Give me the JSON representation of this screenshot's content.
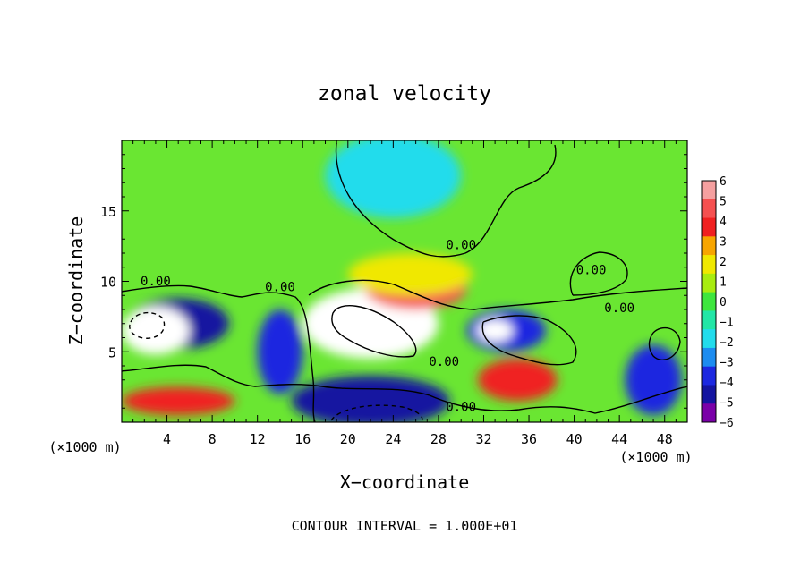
{
  "chart_data": {
    "type": "heatmap",
    "title": "zonal velocity",
    "xlabel": "X−coordinate",
    "ylabel": "Z−coordinate",
    "x_unit_left": "(×1000 m)",
    "x_unit_right": "(×1000 m)",
    "xlim": [
      0,
      50
    ],
    "ylim": [
      0,
      20
    ],
    "x_ticks": [
      {
        "value": 4,
        "label": "4"
      },
      {
        "value": 8,
        "label": "8"
      },
      {
        "value": 12,
        "label": "12"
      },
      {
        "value": 16,
        "label": "16"
      },
      {
        "value": 20,
        "label": "20"
      },
      {
        "value": 24,
        "label": "24"
      },
      {
        "value": 28,
        "label": "28"
      },
      {
        "value": 32,
        "label": "32"
      },
      {
        "value": 36,
        "label": "36"
      },
      {
        "value": 40,
        "label": "40"
      },
      {
        "value": 44,
        "label": "44"
      },
      {
        "value": 48,
        "label": "48"
      }
    ],
    "y_ticks": [
      {
        "value": 5,
        "label": "5"
      },
      {
        "value": 10,
        "label": "10"
      },
      {
        "value": 15,
        "label": "15"
      }
    ],
    "colorbar": {
      "levels": [
        {
          "value": 6,
          "label": "6",
          "color": "#f5a0a0"
        },
        {
          "value": 5,
          "label": "5",
          "color": "#f55050"
        },
        {
          "value": 4,
          "label": "4",
          "color": "#f02020"
        },
        {
          "value": 3,
          "label": "3",
          "color": "#f7a500"
        },
        {
          "value": 2,
          "label": "2",
          "color": "#f0e800"
        },
        {
          "value": 1,
          "label": "1",
          "color": "#a8ec10"
        },
        {
          "value": 0,
          "label": "0",
          "color": "#3ee63e"
        },
        {
          "value": -1,
          "label": "−1",
          "color": "#22e6a6"
        },
        {
          "value": -2,
          "label": "−2",
          "color": "#22dcec"
        },
        {
          "value": -3,
          "label": "−3",
          "color": "#1c8cf0"
        },
        {
          "value": -4,
          "label": "−4",
          "color": "#1c28e0"
        },
        {
          "value": -5,
          "label": "−5",
          "color": "#1414a0"
        },
        {
          "value": -6,
          "label": "−6",
          "color": "#7a00a8"
        }
      ]
    },
    "field_features": [
      {
        "x": 22,
        "z": 7.0,
        "rx": 6.0,
        "rz": 2.5,
        "value": 7
      },
      {
        "x": 26,
        "z": 9.5,
        "rx": 4.5,
        "rz": 1.5,
        "value": 5
      },
      {
        "x": 25.5,
        "z": 10.5,
        "rx": 5.5,
        "rz": 1.5,
        "value": 2
      },
      {
        "x": 5,
        "z": 7.0,
        "rx": 4.5,
        "rz": 1.8,
        "value": -5
      },
      {
        "x": 3,
        "z": 6.5,
        "rx": 3.0,
        "rz": 1.7,
        "value": -7
      },
      {
        "x": 14,
        "z": 5.0,
        "rx": 2.0,
        "rz": 3.0,
        "value": -4
      },
      {
        "x": 22,
        "z": 1.5,
        "rx": 7.0,
        "rz": 1.8,
        "value": -5
      },
      {
        "x": 34,
        "z": 6.5,
        "rx": 3.5,
        "rz": 1.5,
        "value": -4
      },
      {
        "x": 33,
        "z": 6.5,
        "rx": 1.6,
        "rz": 0.8,
        "value": -7
      },
      {
        "x": 35,
        "z": 3.0,
        "rx": 3.5,
        "rz": 1.5,
        "value": 4
      },
      {
        "x": 24,
        "z": 17.5,
        "rx": 6.0,
        "rz": 3.0,
        "value": -2
      },
      {
        "x": 5,
        "z": 1.5,
        "rx": 5.0,
        "rz": 1.0,
        "value": 4
      },
      {
        "x": 47,
        "z": 3.0,
        "rx": 2.5,
        "rz": 2.5,
        "value": -4
      }
    ],
    "contour_labels": [
      {
        "x": 3,
        "z": 9.7,
        "text": "0.00"
      },
      {
        "x": 14,
        "z": 9.3,
        "text": "0.00"
      },
      {
        "x": 30,
        "z": 12.3,
        "text": "0.00"
      },
      {
        "x": 41.5,
        "z": 10.5,
        "text": "0.00"
      },
      {
        "x": 44,
        "z": 7.8,
        "text": "0.00"
      },
      {
        "x": 28.5,
        "z": 4.0,
        "text": "0.00"
      },
      {
        "x": 30,
        "z": 0.8,
        "text": "0.00"
      }
    ],
    "footer": "CONTOUR INTERVAL = 1.000E+01"
  }
}
